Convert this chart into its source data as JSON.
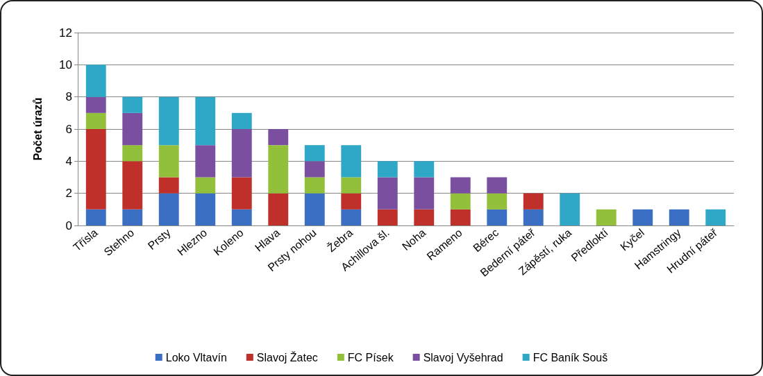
{
  "chart_data": {
    "type": "bar",
    "stacked": true,
    "ylabel": "Počet úrazů",
    "categories": [
      "Třísla",
      "Stehno",
      "Prsty",
      "Hlezno",
      "Koleno",
      "Hlava",
      "Prsty nohou",
      "Žebra",
      "Achillova šl.",
      "Noha",
      "Rameno",
      "Bérec",
      "Bederní páteř",
      "Zápěstí, ruka",
      "Předloktí",
      "Kyčel",
      "Hamstringy",
      "Hrudní páteř"
    ],
    "series": [
      {
        "name": "Loko Vltavín",
        "color": "#3a6fc4",
        "values": [
          1,
          1,
          2,
          2,
          1,
          0,
          2,
          1,
          0,
          0,
          0,
          1,
          1,
          0,
          0,
          1,
          1,
          0
        ]
      },
      {
        "name": "Slavoj Žatec",
        "color": "#c0302b",
        "values": [
          5,
          3,
          1,
          0,
          2,
          2,
          0,
          1,
          1,
          1,
          1,
          0,
          1,
          0,
          0,
          0,
          0,
          0
        ]
      },
      {
        "name": "FC Písek",
        "color": "#93c03a",
        "values": [
          1,
          1,
          2,
          1,
          0,
          3,
          1,
          1,
          0,
          0,
          1,
          1,
          0,
          0,
          1,
          0,
          0,
          0
        ]
      },
      {
        "name": "Slavoj Vyšehrad",
        "color": "#7b4fa0",
        "values": [
          1,
          2,
          0,
          2,
          3,
          1,
          1,
          0,
          2,
          2,
          1,
          1,
          0,
          0,
          0,
          0,
          0,
          0
        ]
      },
      {
        "name": "FC Baník Souš",
        "color": "#2fa8c8",
        "values": [
          2,
          1,
          3,
          3,
          1,
          0,
          1,
          2,
          1,
          1,
          0,
          0,
          0,
          2,
          0,
          0,
          0,
          1
        ]
      }
    ],
    "ylim": [
      0,
      12
    ],
    "yticks": [
      0,
      2,
      4,
      6,
      8,
      10,
      12
    ],
    "grid": "y",
    "legend": "bottom"
  }
}
